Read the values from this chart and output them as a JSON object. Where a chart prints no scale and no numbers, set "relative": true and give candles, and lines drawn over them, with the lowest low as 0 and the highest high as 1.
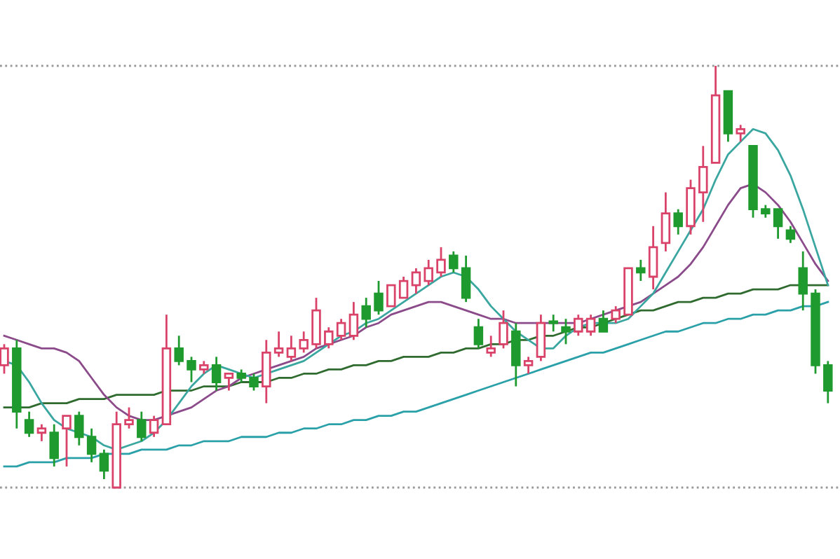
{
  "chart_data": {
    "type": "candlestick",
    "relative": true,
    "categories": [
      null,
      null,
      null,
      null,
      null,
      null,
      null,
      null,
      null,
      null,
      null,
      null,
      null,
      null,
      null,
      null,
      null,
      null,
      null,
      null,
      null,
      null,
      null,
      null,
      null,
      null,
      null,
      null,
      null,
      null,
      null,
      null,
      null,
      null,
      null,
      null,
      null,
      null,
      null,
      null,
      null,
      null,
      null,
      null,
      null,
      null,
      null,
      null,
      null,
      null,
      null,
      null,
      null,
      null,
      null,
      null,
      null,
      null,
      null,
      null,
      null,
      null,
      null,
      null,
      null,
      null,
      null
    ],
    "ohlc": [
      [
        0.29,
        0.34,
        0.27,
        0.33
      ],
      [
        0.33,
        0.35,
        0.14,
        0.18
      ],
      [
        0.16,
        0.18,
        0.12,
        0.13
      ],
      [
        0.13,
        0.15,
        0.11,
        0.14
      ],
      [
        0.13,
        0.15,
        0.05,
        0.07
      ],
      [
        0.14,
        0.17,
        0.05,
        0.17
      ],
      [
        0.17,
        0.18,
        0.1,
        0.12
      ],
      [
        0.12,
        0.14,
        0.06,
        0.08
      ],
      [
        0.08,
        0.09,
        0.02,
        0.04
      ],
      [
        0,
        0.18,
        0,
        0.15
      ],
      [
        0.15,
        0.19,
        0.14,
        0.16
      ],
      [
        0.16,
        0.18,
        0.11,
        0.12
      ],
      [
        0.13,
        0.17,
        0.12,
        0.16
      ],
      [
        0.15,
        0.41,
        0.15,
        0.33
      ],
      [
        0.33,
        0.36,
        0.29,
        0.3
      ],
      [
        0.3,
        0.31,
        0.25,
        0.28
      ],
      [
        0.28,
        0.3,
        0.27,
        0.29
      ],
      [
        0.29,
        0.31,
        0.23,
        0.25
      ],
      [
        0.26,
        0.27,
        0.23,
        0.27
      ],
      [
        0.27,
        0.28,
        0.25,
        0.26
      ],
      [
        0.26,
        0.27,
        0.23,
        0.24
      ],
      [
        0.24,
        0.35,
        0.2,
        0.32
      ],
      [
        0.32,
        0.37,
        0.31,
        0.33
      ],
      [
        0.31,
        0.36,
        0.3,
        0.33
      ],
      [
        0.33,
        0.37,
        0.32,
        0.35
      ],
      [
        0.34,
        0.45,
        0.33,
        0.42
      ],
      [
        0.34,
        0.38,
        0.33,
        0.37
      ],
      [
        0.36,
        0.4,
        0.35,
        0.39
      ],
      [
        0.36,
        0.44,
        0.35,
        0.41
      ],
      [
        0.43,
        0.45,
        0.38,
        0.4
      ],
      [
        0.46,
        0.49,
        0.41,
        0.42
      ],
      [
        0.43,
        0.48,
        0.43,
        0.48
      ],
      [
        0.45,
        0.5,
        0.45,
        0.49
      ],
      [
        0.48,
        0.52,
        0.46,
        0.51
      ],
      [
        0.49,
        0.54,
        0.48,
        0.52
      ],
      [
        0.51,
        0.57,
        0.5,
        0.54
      ],
      [
        0.55,
        0.56,
        0.51,
        0.52
      ],
      [
        0.52,
        0.55,
        0.44,
        0.45
      ],
      [
        0.38,
        0.4,
        0.33,
        0.34
      ],
      [
        0.32,
        0.36,
        0.31,
        0.33
      ],
      [
        0.34,
        0.42,
        0.33,
        0.39
      ],
      [
        0.37,
        0.39,
        0.24,
        0.29
      ],
      [
        0.29,
        0.31,
        0.27,
        0.3
      ],
      [
        0.31,
        0.41,
        0.3,
        0.39
      ],
      [
        0.39,
        0.41,
        0.37,
        0.39
      ],
      [
        0.38,
        0.4,
        0.34,
        0.37
      ],
      [
        0.37,
        0.41,
        0.36,
        0.4
      ],
      [
        0.37,
        0.41,
        0.36,
        0.4
      ],
      [
        0.4,
        0.42,
        0.37,
        0.37
      ],
      [
        0.4,
        0.43,
        0.39,
        0.42
      ],
      [
        0.41,
        0.52,
        0.41,
        0.52
      ],
      [
        0.52,
        0.54,
        0.49,
        0.51
      ],
      [
        0.5,
        0.62,
        0.47,
        0.57
      ],
      [
        0.58,
        0.7,
        0.56,
        0.65
      ],
      [
        0.65,
        0.66,
        0.6,
        0.62
      ],
      [
        0.62,
        0.73,
        0.6,
        0.71
      ],
      [
        0.7,
        0.81,
        0.63,
        0.76
      ],
      [
        0.77,
        1.0,
        0.77,
        0.93
      ],
      [
        0.94,
        0.94,
        0.82,
        0.84
      ],
      [
        0.84,
        0.86,
        0.82,
        0.85
      ],
      [
        0.81,
        0.81,
        0.64,
        0.66
      ],
      [
        0.66,
        0.67,
        0.64,
        0.65
      ],
      [
        0.66,
        0.66,
        0.59,
        0.62
      ],
      [
        0.61,
        0.62,
        0.58,
        0.59
      ],
      [
        0.52,
        0.56,
        0.42,
        0.46
      ],
      [
        0.46,
        0.47,
        0.27,
        0.29
      ],
      [
        0.29,
        0.3,
        0.2,
        0.23
      ]
    ],
    "colors": [
      "#d9436a",
      "#1f9a2e",
      "#1f9a2e",
      "#d9436a",
      "#1f9a2e",
      "#d9436a",
      "#1f9a2e",
      "#1f9a2e",
      "#1f9a2e",
      "#d9436a",
      "#d9436a",
      "#1f9a2e",
      "#d9436a",
      "#d9436a",
      "#1f9a2e",
      "#1f9a2e",
      "#d9436a",
      "#1f9a2e",
      "#d9436a",
      "#1f9a2e",
      "#1f9a2e",
      "#d9436a",
      "#d9436a",
      "#d9436a",
      "#d9436a",
      "#d9436a",
      "#d9436a",
      "#d9436a",
      "#d9436a",
      "#1f9a2e",
      "#1f9a2e",
      "#d9436a",
      "#d9436a",
      "#d9436a",
      "#d9436a",
      "#d9436a",
      "#1f9a2e",
      "#1f9a2e",
      "#1f9a2e",
      "#d9436a",
      "#d9436a",
      "#1f9a2e",
      "#d9436a",
      "#d9436a",
      "#1f9a2e",
      "#1f9a2e",
      "#d9436a",
      "#d9436a",
      "#1f9a2e",
      "#d9436a",
      "#d9436a",
      "#1f9a2e",
      "#d9436a",
      "#d9436a",
      "#1f9a2e",
      "#d9436a",
      "#d9436a",
      "#d9436a",
      "#1f9a2e",
      "#d9436a",
      "#1f9a2e",
      "#1f9a2e",
      "#1f9a2e",
      "#1f9a2e",
      "#1f9a2e",
      "#1f9a2e",
      "#1f9a2e"
    ],
    "series": [
      {
        "type": "line",
        "color": "#2aa0a8",
        "values": [
          0.05,
          0.05,
          0.06,
          0.06,
          0.06,
          0.07,
          0.07,
          0.07,
          0.08,
          0.08,
          0.08,
          0.09,
          0.09,
          0.09,
          0.1,
          0.1,
          0.11,
          0.11,
          0.11,
          0.12,
          0.12,
          0.12,
          0.13,
          0.13,
          0.14,
          0.14,
          0.15,
          0.15,
          0.16,
          0.16,
          0.17,
          0.17,
          0.18,
          0.18,
          0.19,
          0.2,
          0.21,
          0.22,
          0.23,
          0.24,
          0.25,
          0.26,
          0.27,
          0.28,
          0.29,
          0.3,
          0.31,
          0.32,
          0.32,
          0.33,
          0.34,
          0.35,
          0.36,
          0.37,
          0.37,
          0.38,
          0.39,
          0.39,
          0.4,
          0.4,
          0.41,
          0.41,
          0.42,
          0.42,
          0.43,
          0.43,
          0.44
        ]
      },
      {
        "type": "line",
        "color": "#2f6b2f",
        "values": [
          0.19,
          0.19,
          0.19,
          0.2,
          0.2,
          0.2,
          0.21,
          0.21,
          0.21,
          0.22,
          0.22,
          0.22,
          0.22,
          0.23,
          0.23,
          0.23,
          0.24,
          0.24,
          0.24,
          0.25,
          0.25,
          0.25,
          0.26,
          0.26,
          0.27,
          0.27,
          0.28,
          0.28,
          0.29,
          0.29,
          0.3,
          0.3,
          0.31,
          0.31,
          0.31,
          0.32,
          0.32,
          0.33,
          0.33,
          0.34,
          0.34,
          0.35,
          0.35,
          0.36,
          0.36,
          0.37,
          0.38,
          0.38,
          0.39,
          0.4,
          0.41,
          0.42,
          0.42,
          0.43,
          0.44,
          0.44,
          0.45,
          0.45,
          0.46,
          0.46,
          0.47,
          0.47,
          0.47,
          0.48,
          0.48,
          0.48,
          0.48
        ]
      },
      {
        "type": "line",
        "color": "#8b4a8a",
        "values": [
          0.36,
          0.35,
          0.34,
          0.33,
          0.33,
          0.32,
          0.3,
          0.26,
          0.22,
          0.19,
          0.17,
          0.16,
          0.16,
          0.17,
          0.18,
          0.19,
          0.21,
          0.23,
          0.24,
          0.26,
          0.27,
          0.28,
          0.29,
          0.3,
          0.31,
          0.33,
          0.34,
          0.35,
          0.36,
          0.38,
          0.39,
          0.41,
          0.42,
          0.43,
          0.44,
          0.44,
          0.43,
          0.42,
          0.41,
          0.4,
          0.4,
          0.39,
          0.39,
          0.39,
          0.39,
          0.39,
          0.39,
          0.4,
          0.41,
          0.42,
          0.43,
          0.44,
          0.46,
          0.48,
          0.5,
          0.53,
          0.57,
          0.62,
          0.67,
          0.71,
          0.72,
          0.7,
          0.67,
          0.63,
          0.58,
          0.53,
          0.49
        ]
      },
      {
        "type": "line",
        "color": "#3aa6a0",
        "values": [
          0.3,
          0.29,
          0.25,
          0.2,
          0.16,
          0.14,
          0.13,
          0.12,
          0.1,
          0.09,
          0.1,
          0.11,
          0.13,
          0.16,
          0.2,
          0.24,
          0.27,
          0.29,
          0.28,
          0.27,
          0.26,
          0.27,
          0.28,
          0.29,
          0.3,
          0.32,
          0.34,
          0.36,
          0.37,
          0.39,
          0.4,
          0.42,
          0.44,
          0.46,
          0.48,
          0.5,
          0.51,
          0.5,
          0.47,
          0.43,
          0.4,
          0.37,
          0.35,
          0.33,
          0.33,
          0.36,
          0.38,
          0.39,
          0.39,
          0.39,
          0.4,
          0.43,
          0.46,
          0.51,
          0.56,
          0.61,
          0.66,
          0.73,
          0.79,
          0.82,
          0.85,
          0.84,
          0.8,
          0.74,
          0.66,
          0.57,
          0.48
        ]
      }
    ],
    "ref_lines": [
      {
        "axis": "y",
        "value": 1,
        "color": "#999999",
        "line_style": "dotted"
      },
      {
        "axis": "y",
        "value": 0,
        "color": "#999999",
        "line_style": "dotted"
      }
    ],
    "legend": false
  }
}
